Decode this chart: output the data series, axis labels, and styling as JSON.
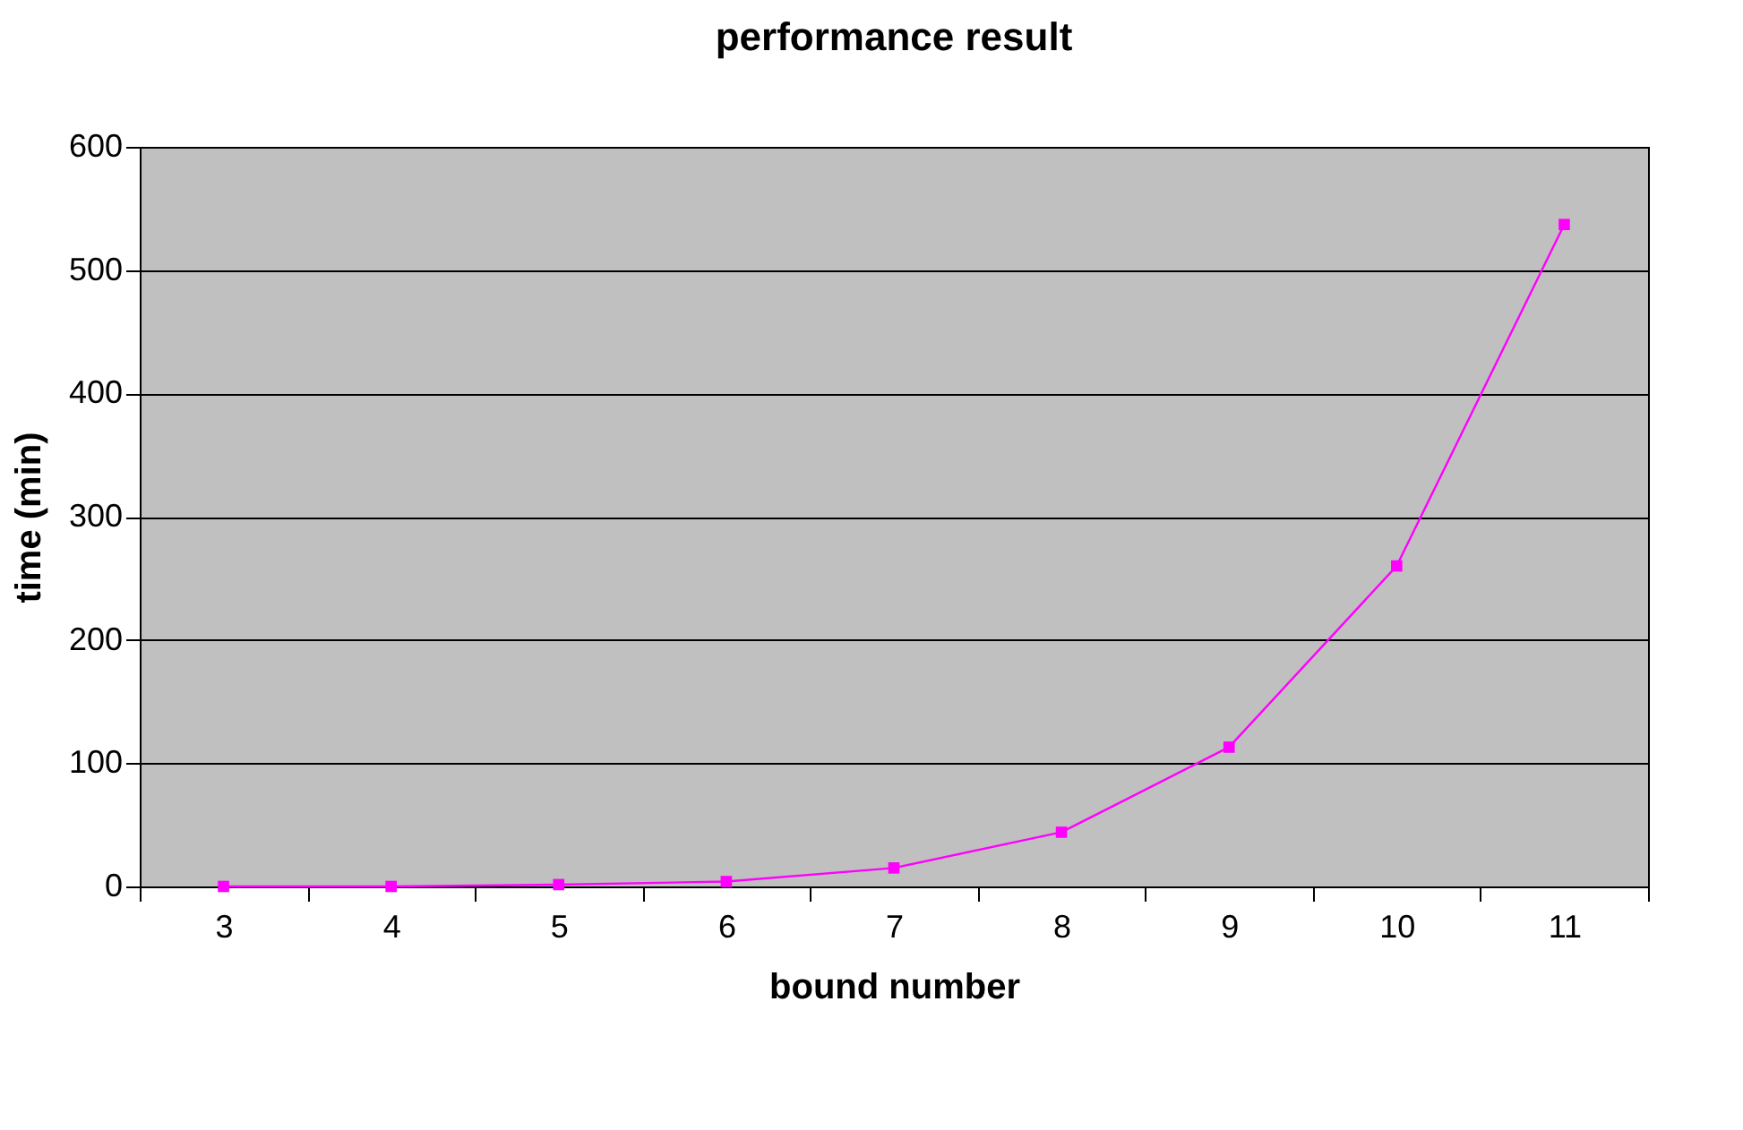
{
  "chart_data": {
    "type": "line",
    "title": "performance result",
    "xlabel": "bound number",
    "ylabel": "time (min)",
    "categories": [
      "3",
      "4",
      "5",
      "6",
      "7",
      "8",
      "9",
      "10",
      "11"
    ],
    "series": [
      {
        "color": "#ff00ff",
        "values": [
          0,
          0,
          1.5,
          4,
          15,
          44,
          113,
          260,
          537
        ]
      }
    ],
    "ylim": [
      0,
      600
    ],
    "yticks": [
      0,
      100,
      200,
      300,
      400,
      500,
      600
    ],
    "grid": "y",
    "marker": "square",
    "line_style": "solid"
  }
}
